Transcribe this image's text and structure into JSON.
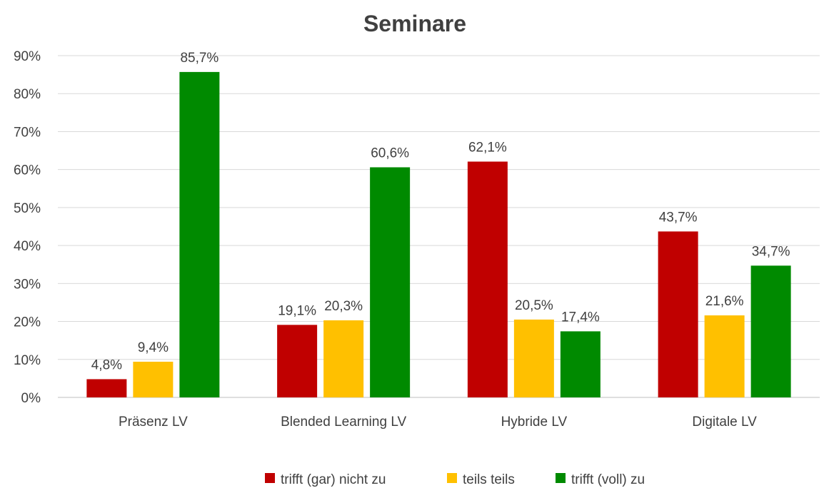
{
  "chart_data": {
    "type": "bar",
    "title": "Seminare",
    "categories": [
      "Präsenz LV",
      "Blended Learning LV",
      "Hybride LV",
      "Digitale LV"
    ],
    "series": [
      {
        "name": "trifft (gar) nicht zu",
        "color": "#c00000",
        "values": [
          4.8,
          19.1,
          62.1,
          43.7
        ],
        "labels": [
          "4,8%",
          "19,1%",
          "62,1%",
          "43,7%"
        ]
      },
      {
        "name": "teils teils",
        "color": "#ffc000",
        "values": [
          9.4,
          20.3,
          20.5,
          21.6
        ],
        "labels": [
          "9,4%",
          "20,3%",
          "20,5%",
          "21,6%"
        ]
      },
      {
        "name": "trifft (voll) zu",
        "color": "#008a00",
        "values": [
          85.7,
          60.6,
          17.4,
          34.7
        ],
        "labels": [
          "85,7%",
          "60,6%",
          "17,4%",
          "34,7%"
        ]
      }
    ],
    "y_ticks": [
      "0%",
      "10%",
      "20%",
      "30%",
      "40%",
      "50%",
      "60%",
      "70%",
      "80%",
      "90%"
    ],
    "ylim": [
      0,
      90
    ],
    "grid": true,
    "legend_position": "bottom"
  }
}
